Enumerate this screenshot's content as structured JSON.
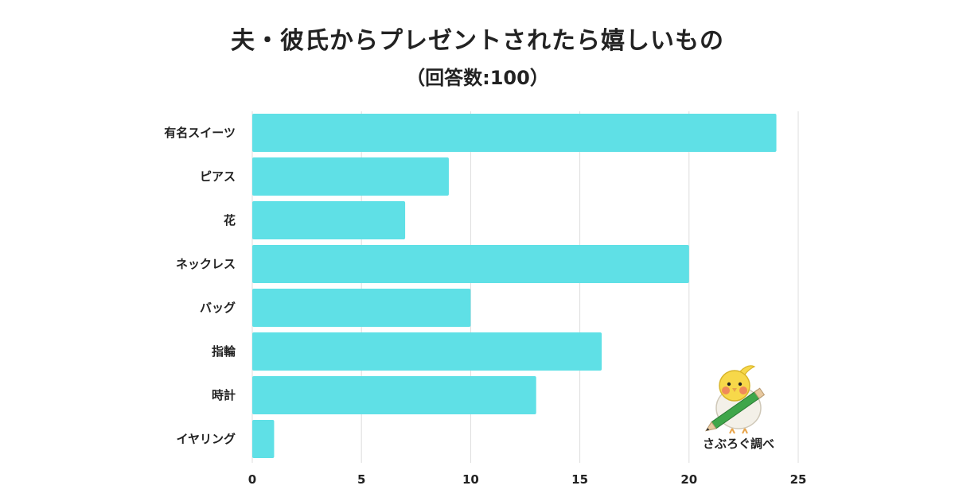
{
  "header": {
    "title": "夫・彼氏からプレゼントされたら嬉しいもの",
    "subtitle": "（回答数:100）"
  },
  "chart_data": {
    "type": "bar",
    "orientation": "horizontal",
    "categories": [
      "有名スイーツ",
      "ピアス",
      "花",
      "ネックレス",
      "バッグ",
      "指輪",
      "時計",
      "イヤリング"
    ],
    "values": [
      24,
      9,
      7,
      20,
      10,
      16,
      13,
      1
    ],
    "xlim": [
      0,
      25
    ],
    "xticks": [
      0,
      5,
      10,
      15,
      20,
      25
    ],
    "grid": "vertical",
    "bar_color": "#5fe0e6",
    "grid_color": "#dddddd"
  },
  "brand": {
    "text": "さぶろぐ調べ",
    "icon": "bird-with-pencil-icon"
  }
}
